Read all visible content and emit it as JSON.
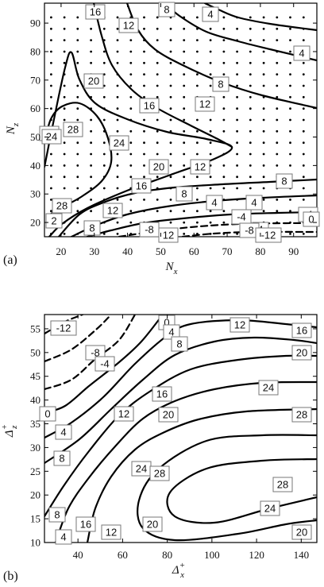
{
  "chart_data": [
    {
      "type": "contour",
      "panel_label": "(a)",
      "xlabel": "N_x",
      "ylabel": "N_z",
      "xlim": [
        15,
        97
      ],
      "ylim": [
        15,
        97
      ],
      "xticks": [
        "20",
        "30",
        "40",
        "50",
        "60",
        "70",
        "80",
        "90"
      ],
      "yticks": [
        "20",
        "30",
        "40",
        "50",
        "60",
        "70",
        "80",
        "90"
      ],
      "grid_points": "dot lattice at evaluated (N_x, N_z) cases",
      "contour_levels": [
        -12,
        -8,
        -4,
        0,
        4,
        8,
        12,
        16,
        20,
        24,
        28
      ],
      "negative_levels_dashed": true,
      "contour_labels": [
        "16",
        "8",
        "4",
        "12",
        "4",
        "20",
        "8",
        "16",
        "12",
        "28",
        "<0",
        "24",
        "24",
        "20",
        "12",
        "16",
        "8",
        "8",
        "4",
        "28",
        "2",
        "12",
        "4",
        "-4",
        "-4",
        "8",
        "4",
        "-8",
        "12",
        "-8",
        "-12",
        "0"
      ]
    },
    {
      "type": "contour",
      "panel_label": "(b)",
      "xlabel": "Δ_x^+",
      "ylabel": "Δ_z^+",
      "xlim": [
        25,
        147
      ],
      "ylim": [
        10,
        58
      ],
      "xticks": [
        "40",
        "60",
        "80",
        "100",
        "120",
        "140"
      ],
      "yticks": [
        "10",
        "15",
        "20",
        "25",
        "30",
        "35",
        "40",
        "45",
        "50",
        "55"
      ],
      "contour_levels": [
        -12,
        -8,
        -4,
        0,
        4,
        8,
        12,
        16,
        20,
        24,
        28
      ],
      "negative_levels_dashed": true,
      "contour_labels": [
        "-12",
        "0",
        "-8",
        "4",
        "12",
        "16",
        "-4",
        "8",
        "20",
        "24",
        "16",
        "0",
        "4",
        "12",
        "20",
        "28",
        "8",
        "24",
        "28",
        "28",
        "24",
        "20",
        "8",
        "4",
        "12",
        "16",
        "20"
      ]
    }
  ]
}
